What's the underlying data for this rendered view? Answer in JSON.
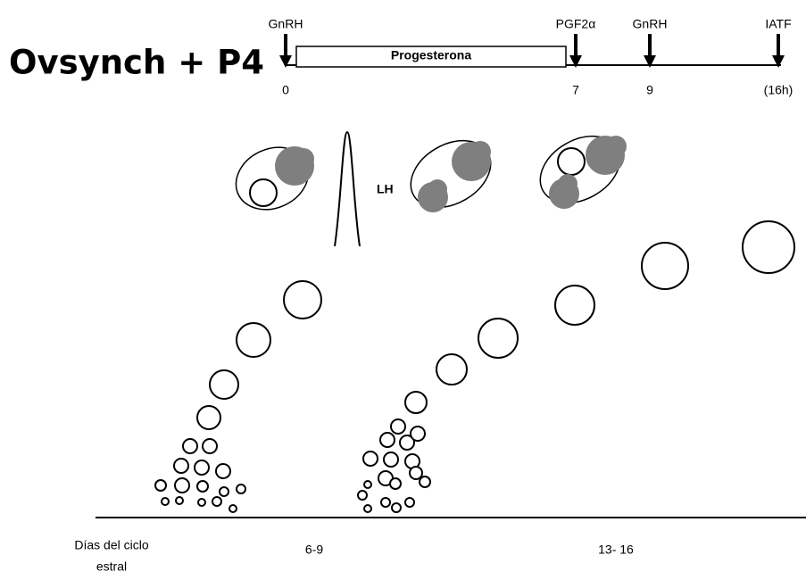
{
  "header": {
    "title": "Ovsynch + P4"
  },
  "timeline": {
    "events": [
      {
        "label": "GnRH",
        "day": "0"
      },
      {
        "label": "PGF2α",
        "day": "7"
      },
      {
        "label": "GnRH",
        "day": "9"
      },
      {
        "label": "IATF",
        "day": "(16h)"
      }
    ],
    "treatment": "Progesterona"
  },
  "peak_label": "LH",
  "axis": {
    "label_lines": [
      "Días del ciclo",
      "estral"
    ],
    "periods": [
      "6-9",
      "13- 16"
    ]
  }
}
